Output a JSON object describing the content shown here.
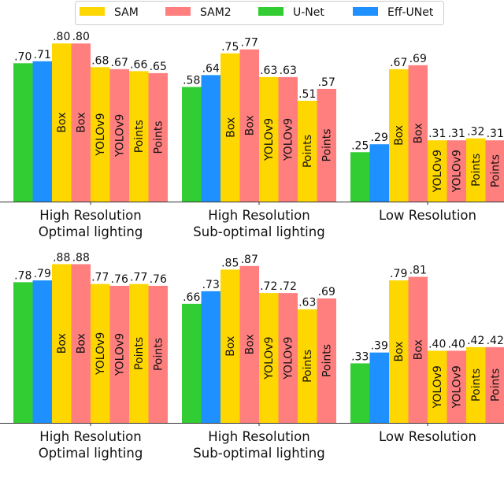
{
  "chart_data": {
    "type": "bar",
    "legend": {
      "placement": "top",
      "entries": [
        {
          "name": "SAM",
          "color": "#FFD700"
        },
        {
          "name": "SAM2",
          "color": "#FF7F7F"
        },
        {
          "name": "U-Net",
          "color": "#32CD32"
        },
        {
          "name": "Eff-UNet",
          "color": "#1E90FF"
        }
      ]
    },
    "bar_order": [
      {
        "model": "U-Net",
        "label": ""
      },
      {
        "model": "Eff-UNet",
        "label": ""
      },
      {
        "model": "SAM",
        "label": "Box"
      },
      {
        "model": "SAM2",
        "label": "Box"
      },
      {
        "model": "SAM",
        "label": "YOLOv9"
      },
      {
        "model": "SAM2",
        "label": "YOLOv9"
      },
      {
        "model": "SAM",
        "label": "Points"
      },
      {
        "model": "SAM2",
        "label": "Points"
      }
    ],
    "grid": false,
    "panels": [
      {
        "categories": [
          [
            "High Resolution",
            "Optimal lighting"
          ],
          [
            "High Resolution",
            "Sub-optimal lighting"
          ],
          [
            "Low Resolution"
          ]
        ],
        "values": [
          [
            0.7,
            0.71,
            0.8,
            0.8,
            0.68,
            0.67,
            0.66,
            0.65
          ],
          [
            0.58,
            0.64,
            0.75,
            0.77,
            0.63,
            0.63,
            0.51,
            0.57
          ],
          [
            0.25,
            0.29,
            0.67,
            0.69,
            0.31,
            0.31,
            0.32,
            0.31
          ]
        ],
        "value_labels": [
          [
            ".70",
            ".71",
            ".80",
            ".80",
            ".68",
            ".67",
            ".66",
            ".65"
          ],
          [
            ".58",
            ".64",
            ".75",
            ".77",
            ".63",
            ".63",
            ".51",
            ".57"
          ],
          [
            ".25",
            ".29",
            ".67",
            ".69",
            ".31",
            ".31",
            ".32",
            ".31"
          ]
        ]
      },
      {
        "categories": [
          [
            "High Resolution",
            "Optimal lighting"
          ],
          [
            "High Resolution",
            "Sub-optimal lighting"
          ],
          [
            "Low Resolution"
          ]
        ],
        "values": [
          [
            0.78,
            0.79,
            0.88,
            0.88,
            0.77,
            0.76,
            0.77,
            0.76
          ],
          [
            0.66,
            0.73,
            0.85,
            0.87,
            0.72,
            0.72,
            0.63,
            0.69
          ],
          [
            0.33,
            0.39,
            0.79,
            0.81,
            0.4,
            0.4,
            0.42,
            0.42
          ]
        ],
        "value_labels": [
          [
            ".78",
            ".79",
            ".88",
            ".88",
            ".77",
            ".76",
            ".77",
            ".76"
          ],
          [
            ".66",
            ".73",
            ".85",
            ".87",
            ".72",
            ".72",
            ".63",
            ".69"
          ],
          [
            ".33",
            ".39",
            ".79",
            ".81",
            ".40",
            ".40",
            ".42",
            ".42"
          ]
        ]
      }
    ]
  }
}
